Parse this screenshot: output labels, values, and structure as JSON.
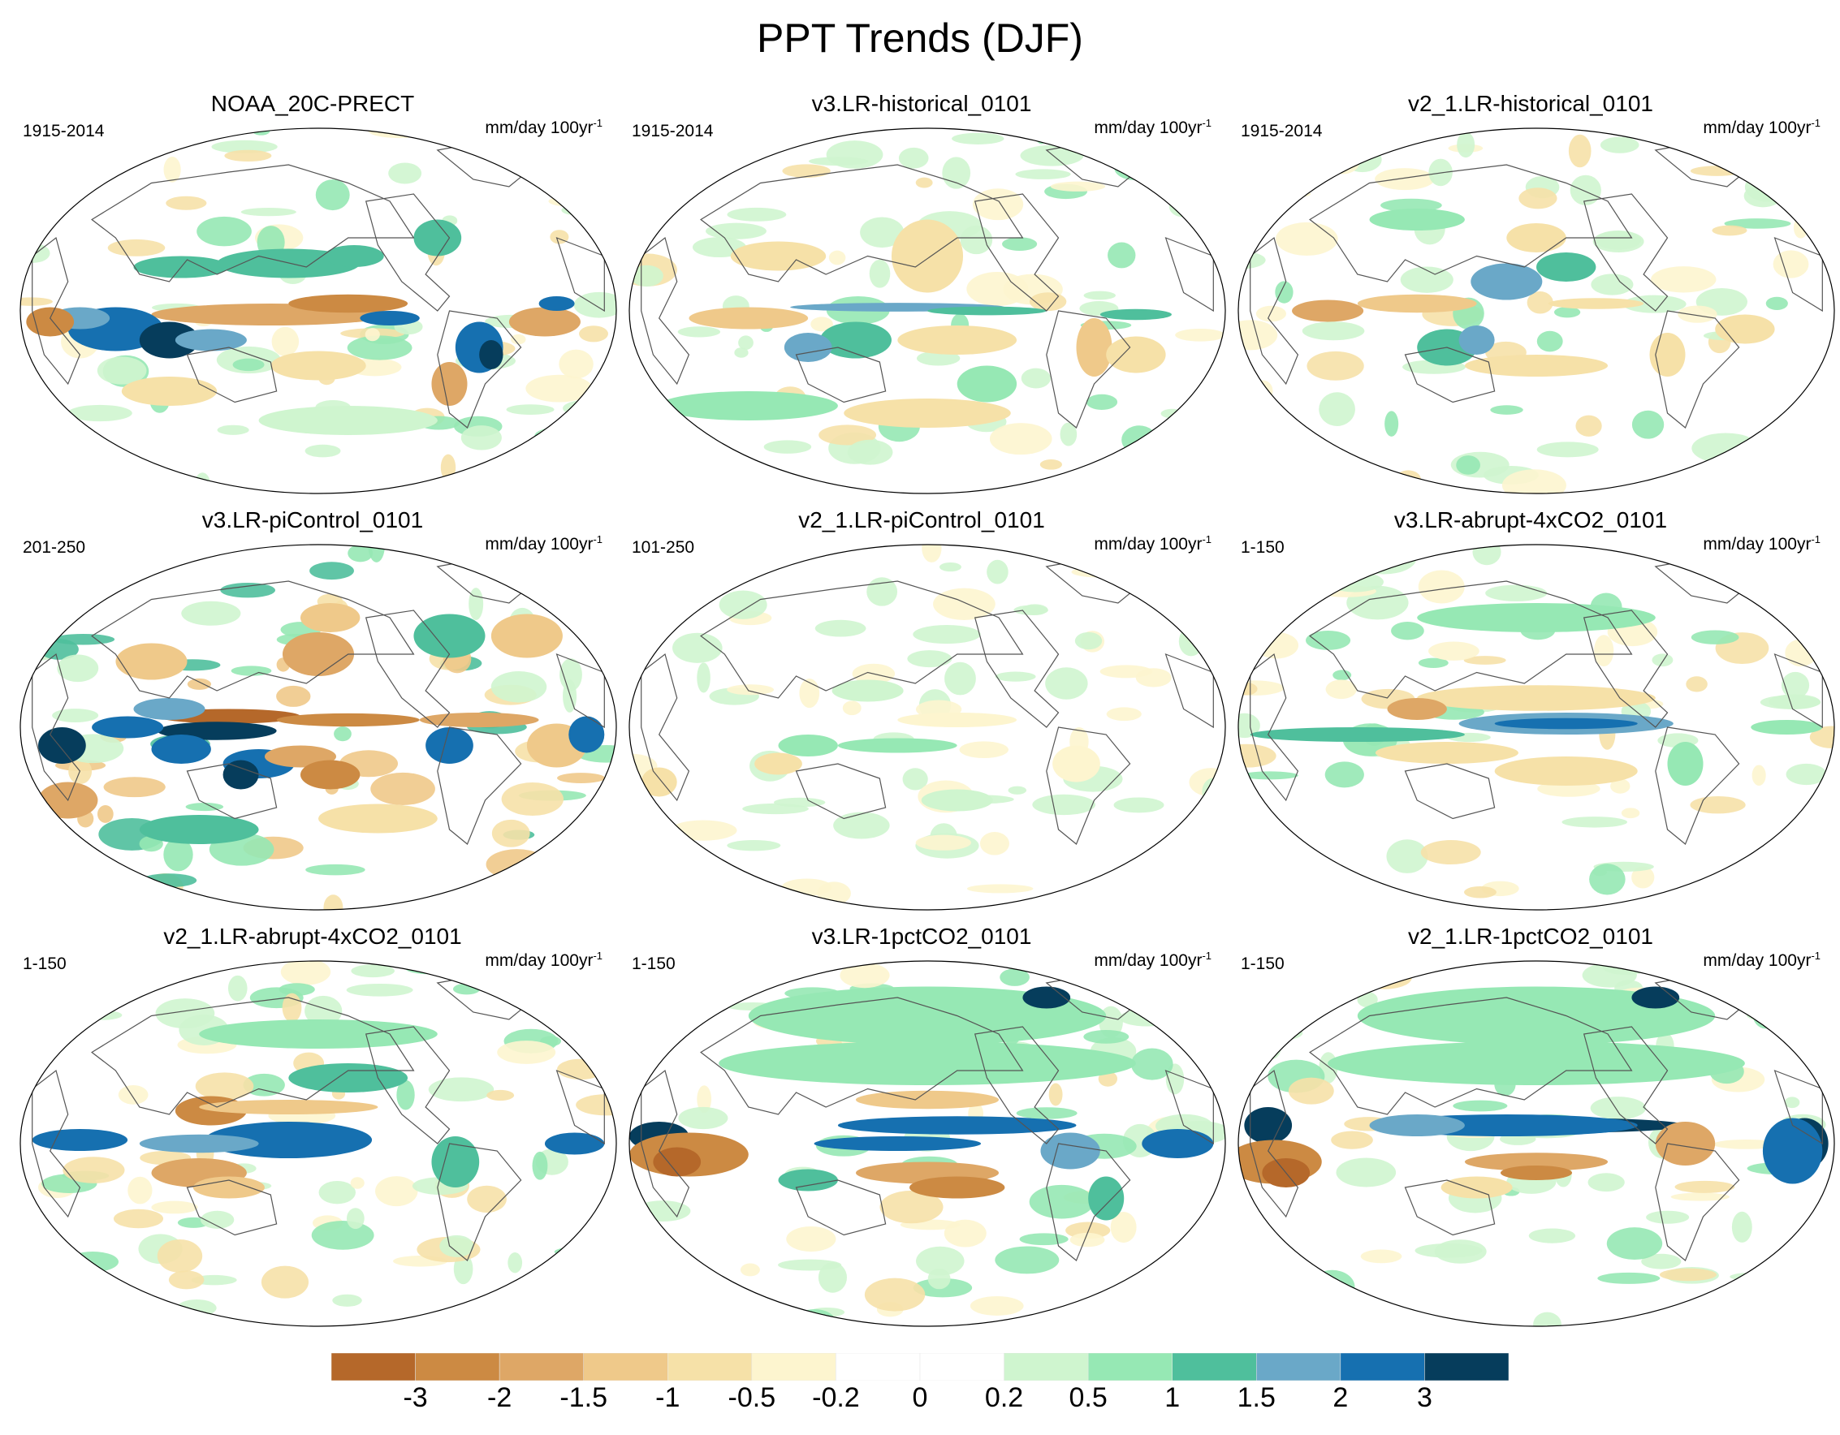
{
  "title": "PPT Trends (DJF)",
  "units_main": "mm/day 100yr",
  "units_sup": "-1",
  "panels": [
    {
      "title": "NOAA_20C-PRECT",
      "period": "1915-2014",
      "pattern": "obs"
    },
    {
      "title": "v3.LR-historical_0101",
      "period": "1915-2014",
      "pattern": "hist"
    },
    {
      "title": "v2_1.LR-historical_0101",
      "period": "1915-2014",
      "pattern": "hist2"
    },
    {
      "title": "v3.LR-piControl_0101",
      "period": "201-250",
      "pattern": "noisy"
    },
    {
      "title": "v2_1.LR-piControl_0101",
      "period": "101-250",
      "pattern": "weak"
    },
    {
      "title": "v3.LR-abrupt-4xCO2_0101",
      "period": "1-150",
      "pattern": "abrupt"
    },
    {
      "title": "v2_1.LR-abrupt-4xCO2_0101",
      "period": "1-150",
      "pattern": "abrupt2"
    },
    {
      "title": "v3.LR-1pctCO2_0101",
      "period": "1-150",
      "pattern": "pct"
    },
    {
      "title": "v2_1.LR-1pctCO2_0101",
      "period": "1-150",
      "pattern": "pct2"
    }
  ],
  "colorbar": {
    "labels": [
      "-3",
      "-2",
      "-1.5",
      "-1",
      "-0.5",
      "-0.2",
      "0",
      "0.2",
      "0.5",
      "1",
      "1.5",
      "2",
      "3"
    ],
    "colors": [
      "#b5682a",
      "#cc8a43",
      "#dea766",
      "#efc98a",
      "#f6e1a8",
      "#fdf5cf",
      "#ffffff",
      "#ffffff",
      "#cff5cf",
      "#96e8b4",
      "#4fbf9c",
      "#6aa8c8",
      "#1670b0",
      "#063d5c"
    ]
  }
}
